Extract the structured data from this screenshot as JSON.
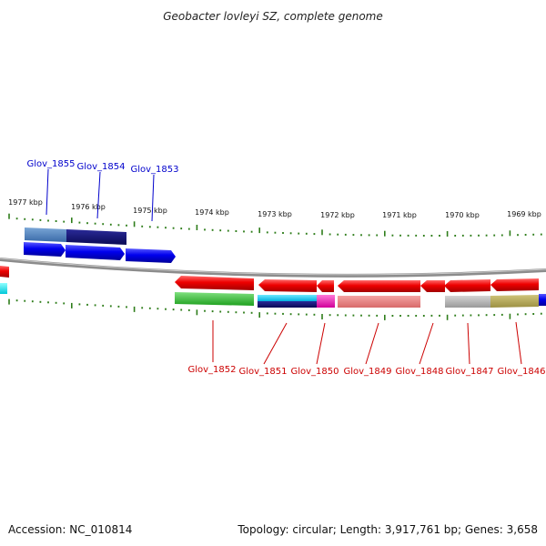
{
  "title": "Geobacter lovleyi SZ, complete genome",
  "footer": {
    "accession": "Accession: NC_010814",
    "summary": "Topology: circular; Length: 3,917,761 bp; Genes: 3,658"
  },
  "coordinate_labels": [
    "1977 kbp",
    "1976 kbp",
    "1975 kbp",
    "1974 kbp",
    "1973 kbp",
    "1972 kbp",
    "1971 kbp",
    "1970 kbp",
    "1969 kbp"
  ],
  "top_gene_labels": [
    "Glov_1855",
    "Glov_1854",
    "Glov_1853"
  ],
  "bottom_gene_labels": [
    "Glov_1852",
    "Glov_1851",
    "Glov_1850",
    "Glov_1849",
    "Glov_1848",
    "Glov_1847",
    "Glov_1846"
  ],
  "colors": {
    "forward_gene": "#0000ee",
    "reverse_gene": "#ee0000",
    "backbone": "#8c8c8c",
    "ticks": "#2e7d1a",
    "top_label": "#0000cc",
    "bottom_label": "#cc0000"
  }
}
